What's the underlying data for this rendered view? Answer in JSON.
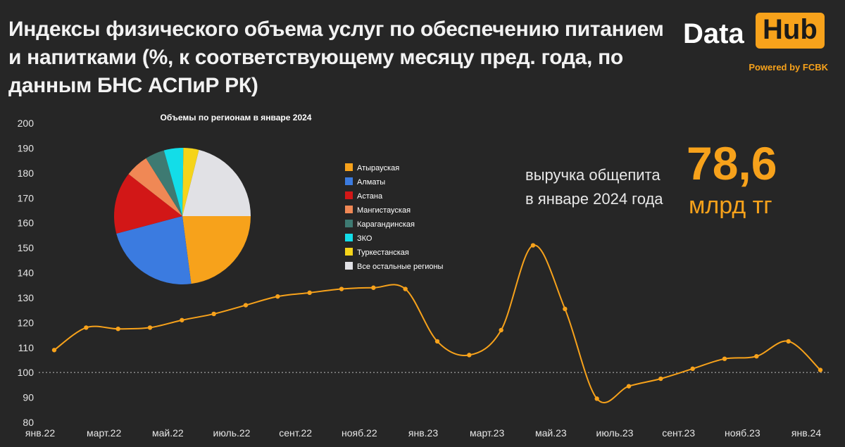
{
  "title": "Индексы физического объема услуг по обеспечению питанием и напитками (%, к соответствующему месяцу пред. года, по данным БНС АСПиР РК)",
  "logo": {
    "data": "Data",
    "hub": "Hub",
    "powered": "Powered by FCBK"
  },
  "kpi": {
    "text_line1": "выручка общепита",
    "text_line2": "в январе 2024 года",
    "value": "78,6",
    "unit": "млрд тг"
  },
  "colors": {
    "background": "#262626",
    "accent": "#f7a21b",
    "line": "#f7a21b"
  },
  "chart_data": [
    {
      "type": "line",
      "title": "",
      "xlabel": "",
      "ylabel": "",
      "ylim": [
        80,
        200
      ],
      "yticks": [
        80,
        90,
        100,
        110,
        120,
        130,
        140,
        150,
        160,
        170,
        180,
        190,
        200
      ],
      "xtick_labels": [
        "янв.22",
        "март.22",
        "май.22",
        "июль.22",
        "сент.22",
        "нояб.22",
        "янв.23",
        "март.23",
        "май.23",
        "июль.23",
        "сент.23",
        "нояб.23",
        "янв.24"
      ],
      "xtick_index": [
        0,
        2,
        4,
        6,
        8,
        10,
        12,
        14,
        16,
        18,
        20,
        22,
        24
      ],
      "reference_line": 100,
      "grid": false,
      "x": [
        "янв.22",
        "фев.22",
        "март.22",
        "апр.22",
        "май.22",
        "июнь.22",
        "июль.22",
        "авг.22",
        "сент.22",
        "окт.22",
        "нояб.22",
        "дек.22",
        "янв.23",
        "фев.23",
        "март.23",
        "апр.23",
        "май.23",
        "июнь.23",
        "июль.23",
        "авг.23",
        "сент.23",
        "окт.23",
        "нояб.23",
        "дек.23",
        "янв.24"
      ],
      "values": [
        109,
        118,
        117.5,
        118,
        121,
        123.5,
        127,
        130.5,
        132,
        133.5,
        134,
        133.5,
        112.5,
        107,
        117,
        151,
        125.5,
        89.5,
        94.5,
        97.5,
        101.5,
        105.5,
        106.5,
        112.5,
        101
      ]
    },
    {
      "type": "pie",
      "title": "Объемы по регионам в январе 2024",
      "legend_position": "right",
      "labels": [
        "Атырауская",
        "Алматы",
        "Астана",
        "Мангистауская",
        "Карагандинская",
        "ЗКО",
        "Туркестанская",
        "Все остальные регионы"
      ],
      "values": [
        25,
        25,
        16,
        6,
        5,
        5,
        4,
        23
      ],
      "colors": [
        "#f7a21b",
        "#3b7be0",
        "#d21717",
        "#f08855",
        "#3e7a72",
        "#13dde8",
        "#f5d41a",
        "#e1e1e5"
      ]
    }
  ]
}
